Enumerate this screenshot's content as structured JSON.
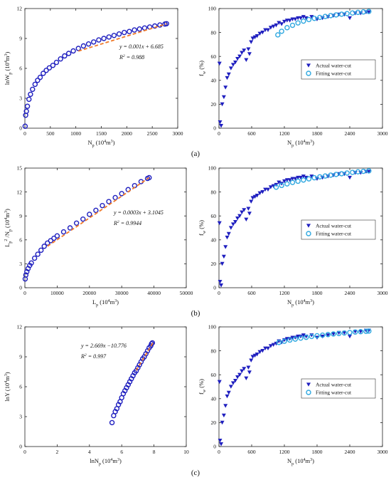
{
  "panel_labels": [
    "(a)",
    "(b)",
    "(c)"
  ],
  "chart_data": [
    {
      "id": "a-left",
      "type": "scatter",
      "xlim": [
        0,
        3000
      ],
      "ylim": [
        0,
        12
      ],
      "xticks": [
        "0",
        "500",
        "1000",
        "1500",
        "2000",
        "2500",
        "3000"
      ],
      "yticks": [
        "0",
        "3",
        "6",
        "9",
        "12"
      ],
      "xlabel": "N_p (10^4m^3)",
      "ylabel": "lnW_p (10^4m^3)",
      "equation": "y = 0.001x + 6.685",
      "r2": "R^2 = 0.988",
      "colors": {
        "marker": "#1f1fbf",
        "fit": "#f07a2a"
      },
      "fit_line": {
        "x": [
          1050,
          2780
        ],
        "y": [
          7.73,
          10.47
        ]
      },
      "series": [
        {
          "x": [
            5,
            15,
            30,
            50,
            80,
            110,
            150,
            200,
            250,
            300,
            360,
            420,
            480,
            550,
            620,
            700,
            780,
            860,
            950,
            1050,
            1150,
            1250,
            1350,
            1450,
            1550,
            1650,
            1750,
            1850,
            1950,
            2050,
            2150,
            2250,
            2350,
            2450,
            2550,
            2650,
            2750,
            2780
          ],
          "y": [
            0.2,
            1.3,
            1.7,
            2.2,
            2.9,
            3.4,
            3.9,
            4.4,
            4.8,
            5.1,
            5.5,
            5.8,
            6.05,
            6.3,
            6.6,
            6.95,
            7.25,
            7.5,
            7.75,
            8.0,
            8.25,
            8.45,
            8.65,
            8.85,
            9.0,
            9.15,
            9.3,
            9.45,
            9.6,
            9.7,
            9.85,
            9.95,
            10.05,
            10.15,
            10.25,
            10.35,
            10.45,
            10.48
          ]
        }
      ]
    },
    {
      "id": "a-right",
      "type": "scatter",
      "xlim": [
        0,
        3000
      ],
      "ylim": [
        0,
        100
      ],
      "xticks": [
        "0",
        "600",
        "1200",
        "1800",
        "2400",
        "3000"
      ],
      "yticks": [
        "0",
        "20",
        "40",
        "60",
        "80",
        "100"
      ],
      "xlabel": "N_p (10^4m^3)",
      "ylabel": "f_w (%)",
      "legend": [
        "Actual water-cut",
        "Fitting water-cut"
      ],
      "colors": {
        "actual": "#1f1fbf",
        "fitting": "#2fa8e0"
      },
      "series": [
        {
          "name": "Actual water-cut",
          "x": [
            10,
            20,
            40,
            60,
            90,
            120,
            150,
            180,
            220,
            260,
            300,
            340,
            380,
            420,
            460,
            500,
            540,
            560,
            590,
            620,
            660,
            700,
            750,
            800,
            850,
            900,
            950,
            1000,
            1050,
            1100,
            1150,
            1200,
            1250,
            1300,
            1350,
            1400,
            1450,
            1500,
            1550,
            1600,
            1700,
            1800,
            1900,
            2000,
            2100,
            2200,
            2300,
            2400,
            2500,
            2600,
            2700,
            2750
          ],
          "y": [
            54,
            5,
            2,
            20,
            26,
            34,
            42,
            45,
            50,
            53,
            55,
            58,
            60,
            63,
            65,
            57,
            66,
            62,
            72,
            75,
            76,
            77,
            79,
            80,
            82,
            82,
            84,
            85,
            86,
            88,
            87,
            89,
            90,
            90,
            91,
            91,
            92,
            92,
            93,
            92,
            93,
            91,
            92,
            93,
            94,
            95,
            95,
            92,
            96,
            96,
            97,
            97
          ]
        },
        {
          "name": "Fitting water-cut",
          "x": [
            1080,
            1150,
            1250,
            1350,
            1450,
            1550,
            1650,
            1750,
            1850,
            1950,
            2050,
            2150,
            2250,
            2350,
            2450,
            2550,
            2650,
            2750
          ],
          "y": [
            78,
            81,
            84,
            86,
            88,
            89.5,
            90.8,
            91.8,
            92.6,
            93.4,
            94.1,
            94.7,
            95.3,
            95.8,
            96.3,
            96.8,
            97.2,
            97.6
          ]
        }
      ]
    },
    {
      "id": "b-left",
      "type": "scatter",
      "xlim": [
        0,
        50000
      ],
      "ylim": [
        0,
        15
      ],
      "xticks": [
        "0",
        "10000",
        "20000",
        "30000",
        "40000",
        "50000"
      ],
      "yticks": [
        "0",
        "3",
        "6",
        "9",
        "12",
        "15"
      ],
      "xlabel": "L_p (10^4m^3)",
      "ylabel": "L_p^2 /N_p (10^4m^3)",
      "equation": "y = 0.0003x + 3.1045",
      "r2": "R^2 = 0.9944",
      "colors": {
        "marker": "#1f1fbf",
        "fit": "#f07a2a"
      },
      "fit_line": {
        "x": [
          7000,
          38500
        ],
        "y": [
          5.2,
          13.8
        ]
      },
      "series": [
        {
          "x": [
            100,
            300,
            600,
            1000,
            1500,
            2000,
            3000,
            4000,
            5000,
            6000,
            7000,
            8000,
            9000,
            10000,
            12000,
            14000,
            16000,
            18000,
            20000,
            22000,
            24000,
            26000,
            28000,
            30000,
            32000,
            34000,
            36000,
            38000,
            38500
          ],
          "y": [
            1.1,
            1.6,
            2.0,
            2.4,
            2.8,
            3.1,
            3.7,
            4.2,
            4.7,
            5.2,
            5.6,
            5.9,
            6.2,
            6.5,
            7.0,
            7.5,
            8.1,
            8.6,
            9.2,
            9.7,
            10.3,
            10.8,
            11.3,
            11.8,
            12.3,
            12.8,
            13.3,
            13.7,
            13.8
          ]
        }
      ]
    },
    {
      "id": "b-right",
      "type": "scatter",
      "xlim": [
        0,
        3000
      ],
      "ylim": [
        0,
        100
      ],
      "xticks": [
        "0",
        "600",
        "1200",
        "1800",
        "2400",
        "3000"
      ],
      "yticks": [
        "0",
        "20",
        "40",
        "60",
        "80",
        "100"
      ],
      "xlabel": "N_p (10^4m^3)",
      "ylabel": "f_w (%)",
      "legend": [
        "Actual water-cut",
        "Fitting water-cut"
      ],
      "colors": {
        "actual": "#1f1fbf",
        "fitting": "#2fa8e0"
      },
      "series": [
        {
          "name": "Actual water-cut",
          "x": [
            10,
            20,
            40,
            60,
            90,
            120,
            150,
            180,
            220,
            260,
            300,
            340,
            380,
            420,
            460,
            500,
            540,
            560,
            590,
            620,
            660,
            700,
            750,
            800,
            850,
            900,
            950,
            1000,
            1050,
            1100,
            1150,
            1200,
            1250,
            1300,
            1350,
            1400,
            1450,
            1500,
            1550,
            1600,
            1700,
            1800,
            1900,
            2000,
            2100,
            2200,
            2300,
            2400,
            2500,
            2600,
            2700,
            2750
          ],
          "y": [
            54,
            5,
            2,
            20,
            26,
            34,
            42,
            45,
            50,
            53,
            55,
            58,
            60,
            63,
            65,
            57,
            66,
            62,
            72,
            75,
            76,
            77,
            79,
            80,
            82,
            82,
            84,
            85,
            86,
            88,
            87,
            89,
            90,
            90,
            91,
            91,
            92,
            92,
            93,
            92,
            93,
            91,
            92,
            93,
            94,
            95,
            95,
            92,
            96,
            96,
            97,
            97
          ]
        },
        {
          "name": "Fitting water-cut",
          "x": [
            1050,
            1150,
            1250,
            1350,
            1450,
            1550,
            1650,
            1750,
            1850,
            1950,
            2050,
            2150,
            2250,
            2350,
            2450,
            2550,
            2650,
            2750
          ],
          "y": [
            84,
            85.5,
            86.8,
            88,
            89,
            90,
            91,
            91.9,
            92.7,
            93.4,
            94.1,
            94.7,
            95.3,
            95.9,
            96.4,
            96.9,
            97.3,
            97.7
          ]
        }
      ]
    },
    {
      "id": "c-left",
      "type": "scatter",
      "xlim": [
        0,
        10
      ],
      "ylim": [
        0,
        12
      ],
      "xticks": [
        "0",
        "2",
        "4",
        "6",
        "8",
        "10"
      ],
      "yticks": [
        "0",
        "3",
        "6",
        "9",
        "12"
      ],
      "xlabel": "lnN_p (10^4m^3)",
      "ylabel": "lnY (10^4m^3)",
      "equation": "y = 2.669x −10.776",
      "r2": "R^2 = 0.997",
      "colors": {
        "marker": "#1f1fbf",
        "fit": "#f07a2a"
      },
      "fit_line": {
        "x": [
          6.9,
          7.93
        ],
        "y": [
          7.64,
          10.39
        ]
      },
      "series": [
        {
          "x": [
            5.4,
            5.5,
            5.6,
            5.7,
            5.8,
            5.9,
            6.0,
            6.1,
            6.2,
            6.3,
            6.4,
            6.5,
            6.6,
            6.7,
            6.8,
            6.9,
            7.0,
            7.1,
            7.2,
            7.3,
            7.4,
            7.5,
            7.6,
            7.7,
            7.8,
            7.85,
            7.9
          ],
          "y": [
            2.4,
            3.1,
            3.5,
            3.8,
            4.2,
            4.5,
            4.9,
            5.3,
            5.6,
            5.9,
            6.2,
            6.5,
            6.8,
            7.1,
            7.4,
            7.6,
            7.9,
            8.2,
            8.5,
            8.8,
            9.0,
            9.3,
            9.6,
            9.9,
            10.1,
            10.3,
            10.4
          ]
        }
      ]
    },
    {
      "id": "c-right",
      "type": "scatter",
      "xlim": [
        0,
        3000
      ],
      "ylim": [
        0,
        100
      ],
      "xticks": [
        "0",
        "600",
        "1200",
        "1800",
        "2400",
        "3000"
      ],
      "yticks": [
        "0",
        "20",
        "40",
        "60",
        "80",
        "100"
      ],
      "xlabel": "N_p (10^4m^3)",
      "ylabel": "f_w (%)",
      "legend": [
        "Actual water-cut",
        "Fitting water-cut"
      ],
      "colors": {
        "actual": "#1f1fbf",
        "fitting": "#2fa8e0"
      },
      "series": [
        {
          "name": "Actual water-cut",
          "x": [
            10,
            20,
            40,
            60,
            90,
            120,
            150,
            180,
            220,
            260,
            300,
            340,
            380,
            420,
            460,
            500,
            540,
            560,
            590,
            620,
            660,
            700,
            750,
            800,
            850,
            900,
            950,
            1000,
            1050,
            1100,
            1150,
            1200,
            1250,
            1300,
            1350,
            1400,
            1450,
            1500,
            1550,
            1600,
            1700,
            1800,
            1900,
            2000,
            2100,
            2200,
            2300,
            2400,
            2500,
            2600,
            2700,
            2750
          ],
          "y": [
            54,
            5,
            2,
            20,
            26,
            34,
            42,
            45,
            50,
            53,
            55,
            58,
            60,
            63,
            65,
            57,
            66,
            62,
            72,
            75,
            76,
            77,
            79,
            80,
            82,
            82,
            84,
            85,
            86,
            88,
            87,
            89,
            90,
            90,
            91,
            91,
            92,
            92,
            93,
            92,
            93,
            91,
            92,
            93,
            94,
            95,
            95,
            92,
            96,
            96,
            97,
            97
          ]
        },
        {
          "name": "Fitting water-cut",
          "x": [
            1100,
            1200,
            1300,
            1400,
            1500,
            1600,
            1700,
            1800,
            1900,
            2000,
            2100,
            2200,
            2300,
            2400,
            2500,
            2600,
            2700,
            2750
          ],
          "y": [
            87,
            88,
            89,
            89.8,
            90.6,
            91.3,
            92,
            92.6,
            93.1,
            93.6,
            94.1,
            94.5,
            94.9,
            95.3,
            95.7,
            96,
            96.3,
            96.5
          ]
        }
      ]
    }
  ]
}
